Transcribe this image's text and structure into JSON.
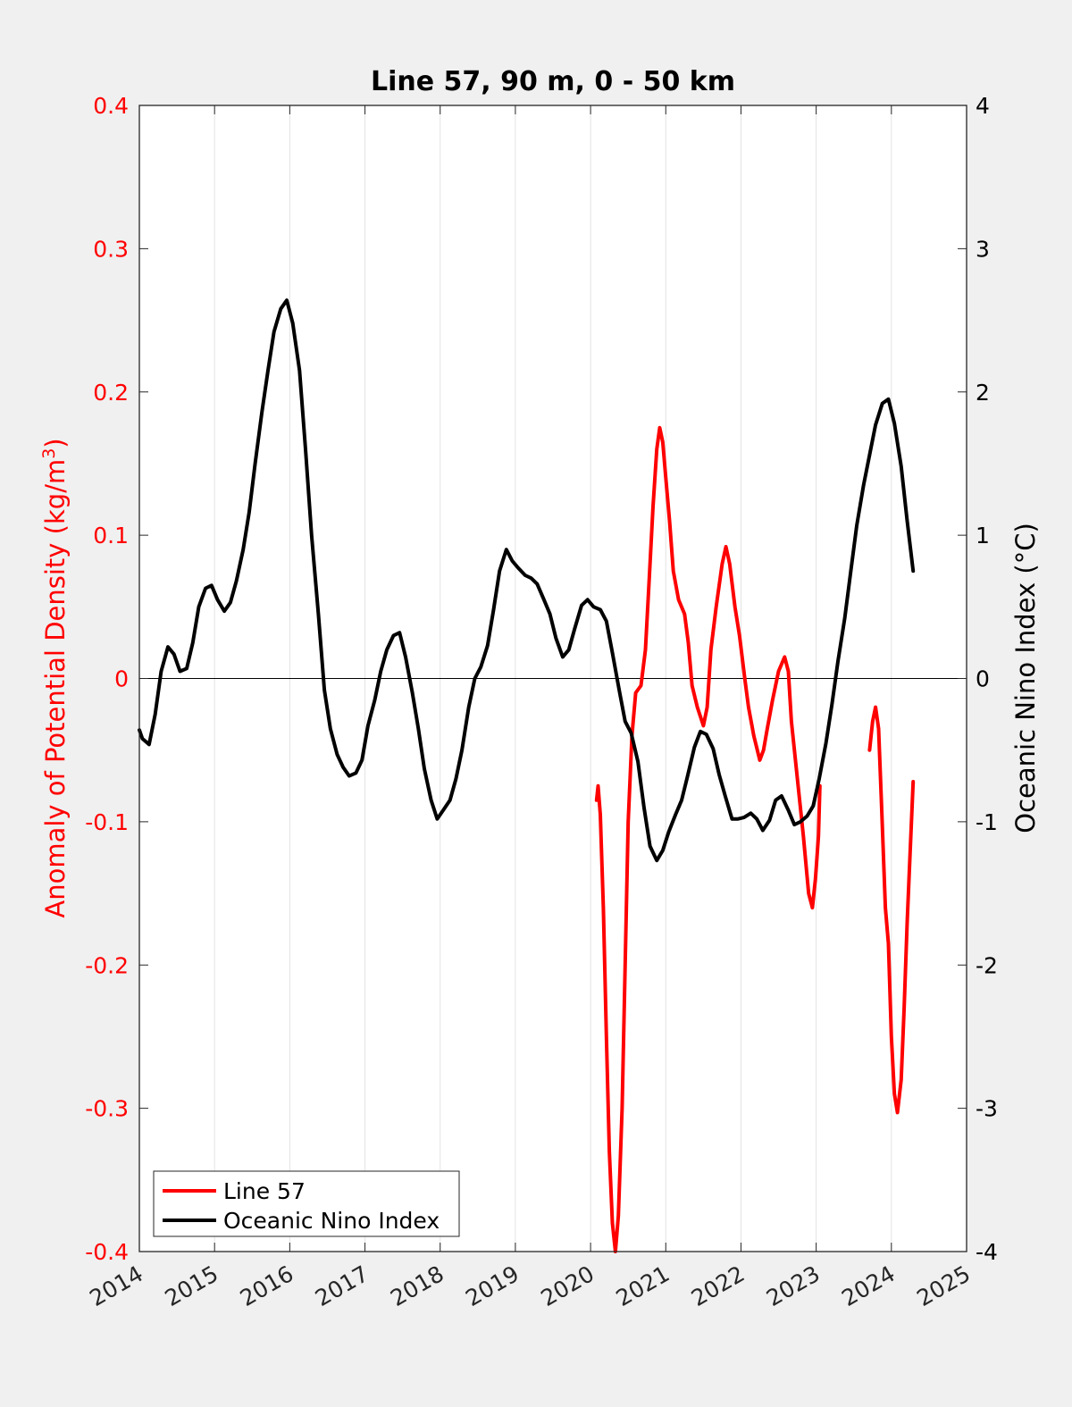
{
  "chart_data": {
    "type": "line",
    "title": "Line 57, 90 m, 0 - 50 km",
    "xlim": [
      2014,
      2025
    ],
    "x_ticks": [
      "2014",
      "2015",
      "2016",
      "2017",
      "2018",
      "2019",
      "2020",
      "2021",
      "2022",
      "2023",
      "2024",
      "2025"
    ],
    "y_left": {
      "label_main": "Anomaly of Potential Density (kg/m",
      "label_sup": "3",
      "label_end": ")",
      "ylim": [
        -0.4,
        0.4
      ],
      "ticks": [
        "-0.4",
        "-0.3",
        "-0.2",
        "-0.1",
        "0",
        "0.1",
        "0.2",
        "0.3",
        "0.4"
      ],
      "color": "#ff0000"
    },
    "y_right": {
      "label": "Oceanic Nino Index (°C)",
      "ylim": [
        -4,
        4
      ],
      "ticks": [
        "-4",
        "-3",
        "-2",
        "-1",
        "0",
        "1",
        "2",
        "3",
        "4"
      ],
      "color": "#000000"
    },
    "grid": "vertical",
    "zero_line": true,
    "legend_position": "bottom-left",
    "series": [
      {
        "name": "Line 57",
        "axis": "left",
        "color": "#ff0000",
        "segments": [
          [
            [
              2020.08,
              -0.085
            ],
            [
              2020.1,
              -0.075
            ],
            [
              2020.13,
              -0.095
            ],
            [
              2020.17,
              -0.16
            ],
            [
              2020.21,
              -0.25
            ],
            [
              2020.25,
              -0.33
            ],
            [
              2020.29,
              -0.38
            ],
            [
              2020.33,
              -0.4
            ],
            [
              2020.37,
              -0.375
            ],
            [
              2020.42,
              -0.3
            ],
            [
              2020.46,
              -0.2
            ],
            [
              2020.5,
              -0.1
            ],
            [
              2020.55,
              -0.04
            ],
            [
              2020.6,
              -0.01
            ],
            [
              2020.67,
              -0.005
            ],
            [
              2020.73,
              0.02
            ],
            [
              2020.78,
              0.07
            ],
            [
              2020.83,
              0.12
            ],
            [
              2020.88,
              0.16
            ],
            [
              2020.92,
              0.175
            ],
            [
              2020.96,
              0.165
            ],
            [
              2021.0,
              0.14
            ],
            [
              2021.05,
              0.11
            ],
            [
              2021.1,
              0.075
            ],
            [
              2021.17,
              0.055
            ],
            [
              2021.25,
              0.045
            ],
            [
              2021.3,
              0.025
            ],
            [
              2021.35,
              -0.005
            ],
            [
              2021.42,
              -0.02
            ],
            [
              2021.5,
              -0.033
            ],
            [
              2021.55,
              -0.02
            ],
            [
              2021.6,
              0.02
            ],
            [
              2021.67,
              0.05
            ],
            [
              2021.75,
              0.08
            ],
            [
              2021.8,
              0.092
            ],
            [
              2021.85,
              0.08
            ],
            [
              2021.92,
              0.05
            ],
            [
              2021.98,
              0.03
            ],
            [
              2022.05,
              0.0
            ],
            [
              2022.1,
              -0.02
            ],
            [
              2022.17,
              -0.04
            ],
            [
              2022.25,
              -0.057
            ],
            [
              2022.3,
              -0.05
            ],
            [
              2022.35,
              -0.035
            ],
            [
              2022.42,
              -0.015
            ],
            [
              2022.5,
              0.005
            ],
            [
              2022.58,
              0.015
            ],
            [
              2022.63,
              0.005
            ],
            [
              2022.67,
              -0.03
            ],
            [
              2022.75,
              -0.07
            ],
            [
              2022.83,
              -0.11
            ],
            [
              2022.9,
              -0.15
            ],
            [
              2022.95,
              -0.16
            ],
            [
              2022.99,
              -0.14
            ],
            [
              2023.03,
              -0.11
            ],
            [
              2023.05,
              -0.075
            ]
          ],
          [
            [
              2023.71,
              -0.05
            ],
            [
              2023.75,
              -0.03
            ],
            [
              2023.79,
              -0.02
            ],
            [
              2023.83,
              -0.035
            ],
            [
              2023.87,
              -0.09
            ],
            [
              2023.92,
              -0.16
            ],
            [
              2023.96,
              -0.185
            ],
            [
              2024.0,
              -0.25
            ],
            [
              2024.04,
              -0.29
            ],
            [
              2024.08,
              -0.303
            ],
            [
              2024.13,
              -0.28
            ],
            [
              2024.17,
              -0.23
            ],
            [
              2024.21,
              -0.17
            ],
            [
              2024.25,
              -0.12
            ],
            [
              2024.29,
              -0.072
            ]
          ]
        ]
      },
      {
        "name": "Oceanic Nino Index",
        "axis": "right",
        "color": "#000000",
        "segments": [
          [
            [
              2014.0,
              -0.36
            ],
            [
              2014.04,
              -0.42
            ],
            [
              2014.13,
              -0.46
            ],
            [
              2014.21,
              -0.25
            ],
            [
              2014.29,
              0.05
            ],
            [
              2014.38,
              0.22
            ],
            [
              2014.46,
              0.17
            ],
            [
              2014.54,
              0.05
            ],
            [
              2014.63,
              0.07
            ],
            [
              2014.71,
              0.25
            ],
            [
              2014.79,
              0.5
            ],
            [
              2014.88,
              0.63
            ],
            [
              2014.96,
              0.65
            ],
            [
              2015.04,
              0.55
            ],
            [
              2015.13,
              0.47
            ],
            [
              2015.21,
              0.53
            ],
            [
              2015.29,
              0.68
            ],
            [
              2015.38,
              0.9
            ],
            [
              2015.46,
              1.16
            ],
            [
              2015.54,
              1.5
            ],
            [
              2015.63,
              1.86
            ],
            [
              2015.71,
              2.15
            ],
            [
              2015.79,
              2.42
            ],
            [
              2015.88,
              2.58
            ],
            [
              2015.96,
              2.64
            ],
            [
              2016.04,
              2.48
            ],
            [
              2016.13,
              2.15
            ],
            [
              2016.21,
              1.6
            ],
            [
              2016.29,
              1.0
            ],
            [
              2016.38,
              0.45
            ],
            [
              2016.46,
              -0.08
            ],
            [
              2016.54,
              -0.35
            ],
            [
              2016.63,
              -0.53
            ],
            [
              2016.71,
              -0.62
            ],
            [
              2016.79,
              -0.68
            ],
            [
              2016.88,
              -0.66
            ],
            [
              2016.96,
              -0.57
            ],
            [
              2017.04,
              -0.33
            ],
            [
              2017.13,
              -0.15
            ],
            [
              2017.21,
              0.05
            ],
            [
              2017.29,
              0.2
            ],
            [
              2017.38,
              0.3
            ],
            [
              2017.46,
              0.32
            ],
            [
              2017.54,
              0.15
            ],
            [
              2017.63,
              -0.1
            ],
            [
              2017.71,
              -0.35
            ],
            [
              2017.79,
              -0.63
            ],
            [
              2017.88,
              -0.85
            ],
            [
              2017.96,
              -0.98
            ],
            [
              2018.04,
              -0.92
            ],
            [
              2018.13,
              -0.85
            ],
            [
              2018.21,
              -0.7
            ],
            [
              2018.29,
              -0.5
            ],
            [
              2018.38,
              -0.2
            ],
            [
              2018.46,
              0.0
            ],
            [
              2018.54,
              0.08
            ],
            [
              2018.63,
              0.23
            ],
            [
              2018.71,
              0.48
            ],
            [
              2018.79,
              0.75
            ],
            [
              2018.88,
              0.9
            ],
            [
              2018.96,
              0.82
            ],
            [
              2019.04,
              0.77
            ],
            [
              2019.13,
              0.72
            ],
            [
              2019.21,
              0.7
            ],
            [
              2019.29,
              0.66
            ],
            [
              2019.38,
              0.55
            ],
            [
              2019.46,
              0.45
            ],
            [
              2019.54,
              0.28
            ],
            [
              2019.63,
              0.15
            ],
            [
              2019.71,
              0.2
            ],
            [
              2019.79,
              0.35
            ],
            [
              2019.88,
              0.51
            ],
            [
              2019.96,
              0.55
            ],
            [
              2020.04,
              0.5
            ],
            [
              2020.13,
              0.48
            ],
            [
              2020.21,
              0.4
            ],
            [
              2020.29,
              0.18
            ],
            [
              2020.38,
              -0.08
            ],
            [
              2020.46,
              -0.3
            ],
            [
              2020.54,
              -0.38
            ],
            [
              2020.63,
              -0.58
            ],
            [
              2020.71,
              -0.9
            ],
            [
              2020.79,
              -1.17
            ],
            [
              2020.88,
              -1.27
            ],
            [
              2020.96,
              -1.2
            ],
            [
              2021.04,
              -1.07
            ],
            [
              2021.13,
              -0.95
            ],
            [
              2021.21,
              -0.85
            ],
            [
              2021.29,
              -0.68
            ],
            [
              2021.38,
              -0.48
            ],
            [
              2021.46,
              -0.37
            ],
            [
              2021.54,
              -0.39
            ],
            [
              2021.63,
              -0.49
            ],
            [
              2021.71,
              -0.67
            ],
            [
              2021.79,
              -0.82
            ],
            [
              2021.88,
              -0.98
            ],
            [
              2021.96,
              -0.98
            ],
            [
              2022.04,
              -0.97
            ],
            [
              2022.13,
              -0.94
            ],
            [
              2022.21,
              -0.98
            ],
            [
              2022.29,
              -1.06
            ],
            [
              2022.38,
              -0.99
            ],
            [
              2022.46,
              -0.85
            ],
            [
              2022.54,
              -0.82
            ],
            [
              2022.63,
              -0.92
            ],
            [
              2022.71,
              -1.02
            ],
            [
              2022.79,
              -1.0
            ],
            [
              2022.88,
              -0.96
            ],
            [
              2022.96,
              -0.89
            ],
            [
              2023.04,
              -0.7
            ],
            [
              2023.13,
              -0.45
            ],
            [
              2023.21,
              -0.18
            ],
            [
              2023.29,
              0.12
            ],
            [
              2023.38,
              0.42
            ],
            [
              2023.46,
              0.75
            ],
            [
              2023.54,
              1.07
            ],
            [
              2023.63,
              1.35
            ],
            [
              2023.71,
              1.56
            ],
            [
              2023.79,
              1.77
            ],
            [
              2023.88,
              1.92
            ],
            [
              2023.96,
              1.95
            ],
            [
              2024.04,
              1.78
            ],
            [
              2024.13,
              1.48
            ],
            [
              2024.21,
              1.1
            ],
            [
              2024.29,
              0.75
            ]
          ]
        ]
      }
    ]
  }
}
